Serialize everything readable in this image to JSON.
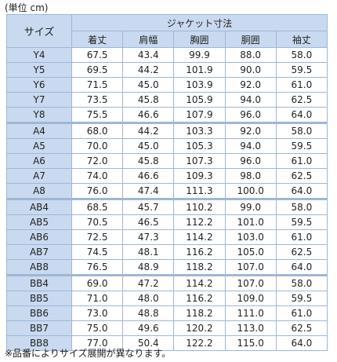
{
  "unit_note": "(単位 cm)",
  "header": {
    "size_label": "サイズ",
    "group_label": "ジャケット寸法",
    "columns": [
      "着丈",
      "肩幅",
      "胸囲",
      "胴囲",
      "袖丈"
    ]
  },
  "rows": [
    {
      "size": "Y4",
      "values": [
        "67.5",
        "43.4",
        "99.9",
        "88.0",
        "58.0"
      ]
    },
    {
      "size": "Y5",
      "values": [
        "69.5",
        "44.2",
        "101.9",
        "90.0",
        "59.5"
      ]
    },
    {
      "size": "Y6",
      "values": [
        "71.5",
        "45.0",
        "103.9",
        "92.0",
        "61.0"
      ]
    },
    {
      "size": "Y7",
      "values": [
        "73.5",
        "45.8",
        "105.9",
        "94.0",
        "62.5"
      ]
    },
    {
      "size": "Y8",
      "values": [
        "75.5",
        "46.6",
        "107.9",
        "96.0",
        "64.0"
      ]
    },
    {
      "size": "A4",
      "values": [
        "68.0",
        "44.2",
        "103.3",
        "92.0",
        "58.0"
      ]
    },
    {
      "size": "A5",
      "values": [
        "70.0",
        "45.0",
        "105.3",
        "94.0",
        "59.5"
      ]
    },
    {
      "size": "A6",
      "values": [
        "72.0",
        "45.8",
        "107.3",
        "96.0",
        "61.0"
      ]
    },
    {
      "size": "A7",
      "values": [
        "74.0",
        "46.6",
        "109.3",
        "98.0",
        "62.5"
      ]
    },
    {
      "size": "A8",
      "values": [
        "76.0",
        "47.4",
        "111.3",
        "100.0",
        "64.0"
      ]
    },
    {
      "size": "AB4",
      "values": [
        "68.5",
        "45.7",
        "110.2",
        "99.0",
        "58.0"
      ]
    },
    {
      "size": "AB5",
      "values": [
        "70.5",
        "46.5",
        "112.2",
        "101.0",
        "59.5"
      ]
    },
    {
      "size": "AB6",
      "values": [
        "72.5",
        "47.3",
        "114.2",
        "103.0",
        "61.0"
      ]
    },
    {
      "size": "AB7",
      "values": [
        "74.5",
        "48.1",
        "116.2",
        "105.0",
        "62.5"
      ]
    },
    {
      "size": "AB8",
      "values": [
        "76.5",
        "48.9",
        "118.2",
        "107.0",
        "64.0"
      ]
    },
    {
      "size": "BB4",
      "values": [
        "69.0",
        "47.2",
        "114.2",
        "107.0",
        "58.0"
      ]
    },
    {
      "size": "BB5",
      "values": [
        "71.0",
        "48.0",
        "116.2",
        "109.0",
        "59.5"
      ]
    },
    {
      "size": "BB6",
      "values": [
        "73.0",
        "48.8",
        "118.2",
        "111.0",
        "61.0"
      ]
    },
    {
      "size": "BB7",
      "values": [
        "75.0",
        "49.6",
        "120.2",
        "113.0",
        "62.5"
      ]
    },
    {
      "size": "BB8",
      "values": [
        "77.0",
        "50.4",
        "122.2",
        "115.0",
        "64.0"
      ]
    }
  ],
  "footnote": "※品番によりサイズ展開が異なります。"
}
